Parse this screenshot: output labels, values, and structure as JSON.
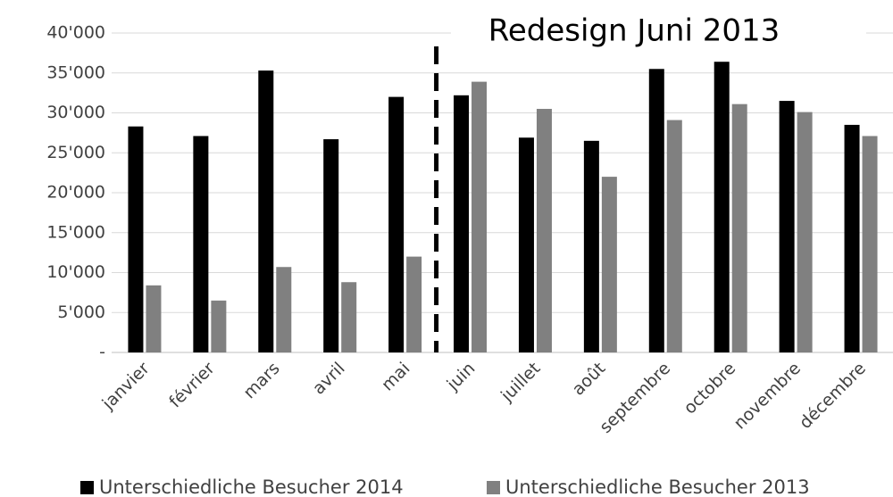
{
  "chart_data": {
    "type": "bar",
    "annotation": "Redesign Juni 2013",
    "categories": [
      "janvier",
      "février",
      "mars",
      "avril",
      "mai",
      "juin",
      "juillet",
      "août",
      "septembre",
      "octobre",
      "novembre",
      "décembre"
    ],
    "series": [
      {
        "name": "Unterschiedliche Besucher 2014",
        "color": "#000000",
        "values": [
          28300,
          27100,
          35300,
          26700,
          32000,
          32200,
          26900,
          26500,
          35500,
          36400,
          31500,
          28500
        ]
      },
      {
        "name": "Unterschiedliche Besucher 2013",
        "color": "#808080",
        "values": [
          8400,
          6500,
          10700,
          8800,
          12000,
          33900,
          30500,
          22000,
          29100,
          31100,
          30100,
          27100
        ]
      }
    ],
    "ylim": [
      0,
      40000
    ],
    "yticks": [
      {
        "value": 0,
        "label": "-"
      },
      {
        "value": 5000,
        "label": "5'000"
      },
      {
        "value": 10000,
        "label": "10'000"
      },
      {
        "value": 15000,
        "label": "15'000"
      },
      {
        "value": 20000,
        "label": "20'000"
      },
      {
        "value": 25000,
        "label": "25'000"
      },
      {
        "value": 30000,
        "label": "30'000"
      },
      {
        "value": 35000,
        "label": "35'000"
      },
      {
        "value": 40000,
        "label": "40'000"
      }
    ],
    "grid": true,
    "legend": "bottom"
  }
}
